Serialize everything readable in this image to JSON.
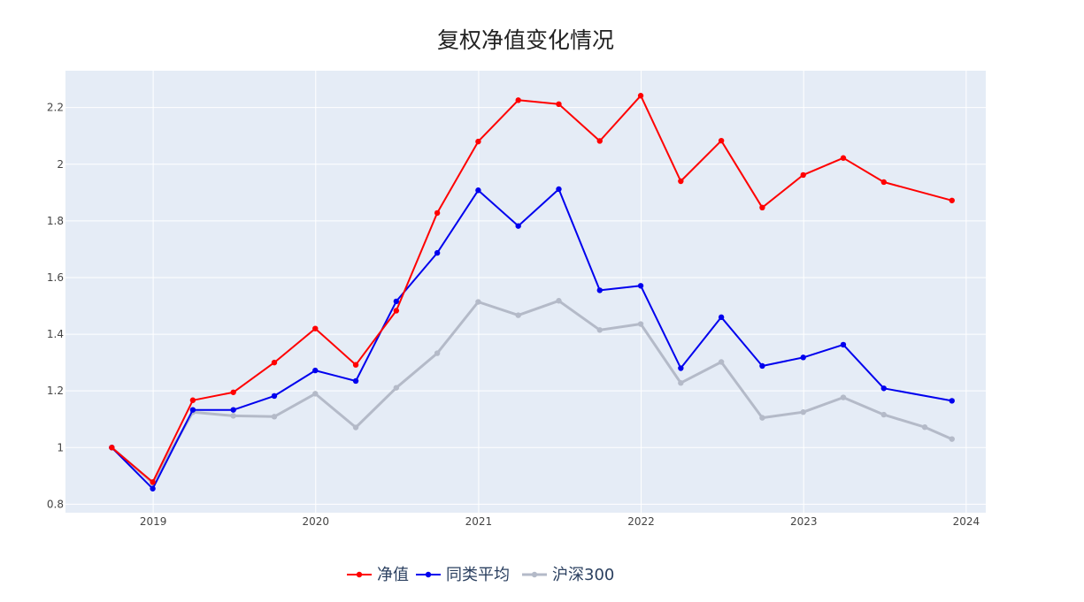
{
  "chart_data": {
    "type": "line",
    "title": "复权净值变化情况",
    "xlabel": "",
    "ylabel": "",
    "x_ticks": [
      "2019",
      "2020",
      "2021",
      "2022",
      "2023",
      "2024"
    ],
    "y_ticks": [
      "0.8",
      "1",
      "1.2",
      "1.4",
      "1.6",
      "1.8",
      "2",
      "2.2"
    ],
    "ylim": [
      0.77,
      2.33
    ],
    "xlim": [
      "2018-06-18",
      "2024-02-14"
    ],
    "grid": true,
    "legend_position": "bottom-center",
    "x": [
      "2018-09-30",
      "2018-12-31",
      "2019-03-31",
      "2019-06-30",
      "2019-09-30",
      "2019-12-31",
      "2020-03-31",
      "2020-06-30",
      "2020-09-30",
      "2020-12-31",
      "2021-03-31",
      "2021-06-30",
      "2021-09-30",
      "2021-12-31",
      "2022-03-31",
      "2022-06-30",
      "2022-09-30",
      "2022-12-31",
      "2023-03-31",
      "2023-06-30",
      "2023-09-30",
      "2023-11-30"
    ],
    "series": [
      {
        "name": "净值",
        "color": "#ff0000",
        "values": [
          1.0,
          0.878,
          1.167,
          1.195,
          1.3,
          1.42,
          1.292,
          1.483,
          1.828,
          2.08,
          2.226,
          2.212,
          2.082,
          2.242,
          1.94,
          2.083,
          1.847,
          1.962,
          2.022,
          1.937,
          null,
          1.872
        ]
      },
      {
        "name": "同类平均",
        "color": "#0000ee",
        "values": [
          1.0,
          0.855,
          1.133,
          1.133,
          1.182,
          1.272,
          1.235,
          1.516,
          1.687,
          1.908,
          1.782,
          1.912,
          1.555,
          1.571,
          1.28,
          1.46,
          1.288,
          1.318,
          1.363,
          1.209,
          null,
          1.165
        ]
      },
      {
        "name": "沪深300",
        "color": "#b4bac8",
        "values": [
          1.0,
          0.875,
          1.125,
          1.112,
          1.109,
          1.19,
          1.071,
          1.211,
          1.333,
          1.514,
          1.467,
          1.518,
          1.415,
          1.436,
          1.228,
          1.302,
          1.105,
          1.125,
          1.177,
          1.116,
          1.072,
          1.03
        ]
      }
    ]
  },
  "colors": {
    "plot_background": "#e5ecf6",
    "grid": "#ffffff",
    "axis_text": "#444444",
    "legend_text": "#2a3f5f"
  }
}
